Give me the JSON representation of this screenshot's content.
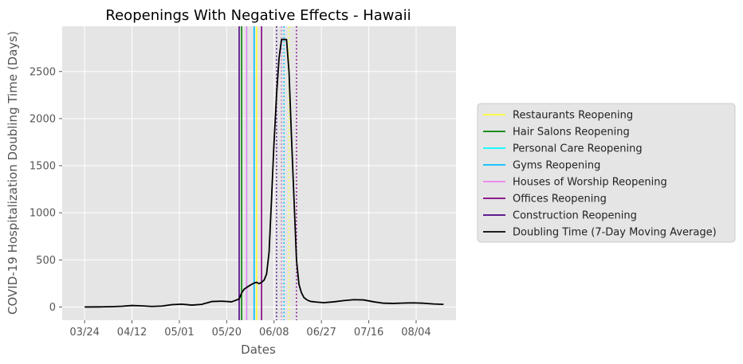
{
  "chart_data": {
    "type": "line",
    "title": "Reopenings With Negative Effects - Hawaii",
    "xlabel": "Dates",
    "ylabel": "COVID-19 Hospitalization Doubling Time (Days)",
    "x_tick_labels": [
      "03/24",
      "04/12",
      "05/01",
      "05/20",
      "06/08",
      "06/27",
      "07/16",
      "08/04"
    ],
    "y_ticks": [
      0,
      500,
      1000,
      1500,
      2000,
      2500
    ],
    "ylim": [
      -140,
      2980
    ],
    "grid": true,
    "legend_position": "right",
    "series": [
      {
        "name": "Doubling Time (7-Day Moving Average)",
        "color": "#000000",
        "x": [
          "03/24",
          "03/30",
          "04/04",
          "04/08",
          "04/12",
          "04/16",
          "04/20",
          "04/24",
          "04/28",
          "05/02",
          "05/06",
          "05/10",
          "05/14",
          "05/18",
          "05/22",
          "05/25",
          "05/26",
          "05/27",
          "05/29",
          "05/31",
          "06/01",
          "06/02",
          "06/03",
          "06/04",
          "06/05",
          "06/06",
          "06/07",
          "06/08",
          "06/09",
          "06/10",
          "06/11",
          "06/12",
          "06/13",
          "06/14",
          "06/15",
          "06/16",
          "06/17",
          "06/18",
          "06/19",
          "06/20",
          "06/21",
          "06/22",
          "06/23",
          "06/25",
          "06/28",
          "07/02",
          "07/06",
          "07/10",
          "07/14",
          "07/18",
          "07/22",
          "07/26",
          "07/30",
          "08/03",
          "08/07",
          "08/11",
          "08/15"
        ],
        "values": [
          0,
          1,
          4,
          8,
          16,
          12,
          6,
          10,
          25,
          30,
          20,
          28,
          58,
          62,
          55,
          85,
          150,
          190,
          225,
          255,
          262,
          248,
          262,
          285,
          350,
          580,
          1150,
          1750,
          2250,
          2640,
          2840,
          2840,
          2840,
          2500,
          1800,
          1150,
          500,
          240,
          150,
          100,
          80,
          65,
          58,
          52,
          46,
          55,
          68,
          78,
          75,
          55,
          40,
          38,
          42,
          44,
          40,
          32,
          28
        ]
      }
    ],
    "reopenings": [
      {
        "name": "Restaurants Reopening",
        "color": "#ffff33",
        "solid_date": "06/01",
        "dotted_date": "06/14"
      },
      {
        "name": "Hair Salons Reopening",
        "color": "#008000",
        "solid_date": "05/26",
        "dotted_date": "06/11"
      },
      {
        "name": "Personal Care Reopening",
        "color": "#00ffff",
        "solid_date": "05/28",
        "dotted_date": "06/12"
      },
      {
        "name": "Gyms Reopening",
        "color": "#00bfff",
        "solid_date": "05/31",
        "dotted_date": "06/12"
      },
      {
        "name": "Houses of Worship Reopening",
        "color": "#ee82ee",
        "solid_date": "05/28",
        "dotted_date": "06/11"
      },
      {
        "name": "Offices Reopening",
        "color": "#800080",
        "solid_date": "06/03",
        "dotted_date": "06/17"
      },
      {
        "name": "Construction Reopening",
        "color": "#4b0082",
        "solid_date": "05/25",
        "dotted_date": "06/09"
      }
    ],
    "legend_entries": [
      {
        "label": "Restaurants Reopening",
        "color": "#ffff33"
      },
      {
        "label": "Hair Salons Reopening",
        "color": "#008000"
      },
      {
        "label": "Personal Care Reopening",
        "color": "#00ffff"
      },
      {
        "label": "Gyms Reopening",
        "color": "#00bfff"
      },
      {
        "label": "Houses of Worship Reopening",
        "color": "#ee82ee"
      },
      {
        "label": "Offices Reopening",
        "color": "#800080"
      },
      {
        "label": "Construction Reopening",
        "color": "#4b0082"
      },
      {
        "label": "Doubling Time (7-Day Moving Average)",
        "color": "#000000"
      }
    ]
  }
}
